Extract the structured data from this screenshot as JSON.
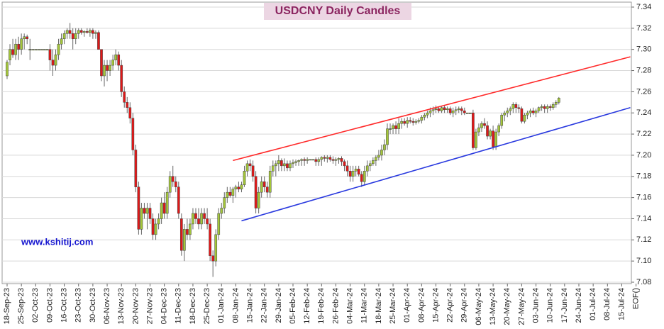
{
  "chart_data": {
    "type": "candlestick",
    "title": "USDCNY Daily Candles",
    "watermark": "www.kshitij.com",
    "up_color": "#a4c639",
    "down_color": "#e01818",
    "ylim": [
      7.08,
      7.34
    ],
    "yticks": [
      7.08,
      {
        "value": 7.1,
        "label": "7.10"
      },
      7.12,
      7.14,
      7.16,
      7.18,
      {
        "value": 7.2,
        "label": "7.20"
      },
      7.22,
      7.24,
      7.26,
      7.28,
      {
        "value": 7.3,
        "label": "7.30"
      },
      7.32,
      7.34
    ],
    "grid": true,
    "categories": [
      "18-Sep-23",
      "25-Sep-23",
      "02-Oct-23",
      "09-Oct-23",
      "16-Oct-23",
      "23-Oct-23",
      "30-Oct-23",
      "06-Nov-23",
      "13-Nov-23",
      "20-Nov-23",
      "27-Nov-23",
      "04-Dec-23",
      "11-Dec-23",
      "18-Dec-23",
      "25-Dec-23",
      "01-Jan-24",
      "08-Jan-24",
      "15-Jan-24",
      "22-Jan-24",
      "29-Jan-24",
      "05-Feb-24",
      "12-Feb-24",
      "19-Feb-24",
      "26-Feb-24",
      "04-Mar-24",
      "11-Mar-24",
      "18-Mar-24",
      "25-Mar-24",
      "01-Apr-24",
      "08-Apr-24",
      "15-Apr-24",
      "22-Apr-24",
      "29-Apr-24",
      "06-May-24",
      "13-May-24",
      "20-May-24",
      "27-May-24",
      "03-Jun-24",
      "10-Jun-24",
      "17-Jun-24",
      "24-Jun-24",
      "01-Jul-24",
      "08-Jul-24",
      "15-Jul-24",
      "EOF()"
    ],
    "trendlines": [
      {
        "color": "#ff2a2a",
        "x": [
          79,
          218
        ],
        "y": [
          7.195,
          7.293
        ]
      },
      {
        "color": "#2a3adf",
        "x": [
          82,
          218
        ],
        "y": [
          7.138,
          7.245
        ]
      }
    ],
    "ohlc": [
      [
        7.275,
        7.29,
        7.272,
        7.288
      ],
      [
        7.29,
        7.305,
        7.285,
        7.3
      ],
      [
        7.3,
        7.31,
        7.292,
        7.295
      ],
      [
        7.295,
        7.31,
        7.29,
        7.305
      ],
      [
        7.305,
        7.312,
        7.29,
        7.3
      ],
      [
        7.3,
        7.315,
        7.295,
        7.31
      ],
      [
        7.31,
        7.315,
        7.3,
        7.312
      ],
      [
        7.312,
        7.314,
        7.305,
        7.31
      ],
      [
        7.3,
        7.31,
        7.29,
        7.3
      ],
      [
        7.3,
        7.3,
        7.3,
        7.3
      ],
      [
        7.3,
        7.3,
        7.3,
        7.3
      ],
      [
        7.3,
        7.3,
        7.3,
        7.3
      ],
      [
        7.3,
        7.3,
        7.3,
        7.3
      ],
      [
        7.3,
        7.3,
        7.3,
        7.3
      ],
      [
        7.3,
        7.3,
        7.3,
        7.3
      ],
      [
        7.3,
        7.305,
        7.28,
        7.29
      ],
      [
        7.29,
        7.3,
        7.275,
        7.285
      ],
      [
        7.285,
        7.3,
        7.28,
        7.295
      ],
      [
        7.295,
        7.31,
        7.29,
        7.305
      ],
      [
        7.305,
        7.315,
        7.3,
        7.31
      ],
      [
        7.31,
        7.318,
        7.305,
        7.315
      ],
      [
        7.315,
        7.32,
        7.31,
        7.318
      ],
      [
        7.318,
        7.325,
        7.31,
        7.315
      ],
      [
        7.315,
        7.32,
        7.3,
        7.31
      ],
      [
        7.31,
        7.32,
        7.305,
        7.315
      ],
      [
        7.315,
        7.32,
        7.31,
        7.318
      ],
      [
        7.318,
        7.32,
        7.314,
        7.316
      ],
      [
        7.316,
        7.318,
        7.312,
        7.317
      ],
      [
        7.317,
        7.32,
        7.315,
        7.316
      ],
      [
        7.316,
        7.32,
        7.312,
        7.318
      ],
      [
        7.318,
        7.32,
        7.31,
        7.315
      ],
      [
        7.315,
        7.318,
        7.31,
        7.316
      ],
      [
        7.316,
        7.318,
        7.3,
        7.3
      ],
      [
        7.3,
        7.3,
        7.27,
        7.275
      ],
      [
        7.275,
        7.29,
        7.265,
        7.285
      ],
      [
        7.285,
        7.29,
        7.27,
        7.28
      ],
      [
        7.28,
        7.29,
        7.275,
        7.285
      ],
      [
        7.285,
        7.295,
        7.28,
        7.29
      ],
      [
        7.29,
        7.3,
        7.285,
        7.295
      ],
      [
        7.295,
        7.298,
        7.28,
        7.285
      ],
      [
        7.285,
        7.29,
        7.255,
        7.26
      ],
      [
        7.26,
        7.265,
        7.245,
        7.25
      ],
      [
        7.25,
        7.255,
        7.24,
        7.245
      ],
      [
        7.245,
        7.25,
        7.23,
        7.235
      ],
      [
        7.235,
        7.24,
        7.2,
        7.205
      ],
      [
        7.205,
        7.21,
        7.165,
        7.17
      ],
      [
        7.17,
        7.175,
        7.125,
        7.13
      ],
      [
        7.13,
        7.155,
        7.125,
        7.15
      ],
      [
        7.15,
        7.155,
        7.14,
        7.145
      ],
      [
        7.145,
        7.155,
        7.13,
        7.15
      ],
      [
        7.15,
        7.155,
        7.135,
        7.14
      ],
      [
        7.14,
        7.145,
        7.12,
        7.125
      ],
      [
        7.125,
        7.14,
        7.12,
        7.135
      ],
      [
        7.135,
        7.145,
        7.13,
        7.14
      ],
      [
        7.14,
        7.16,
        7.135,
        7.155
      ],
      [
        7.155,
        7.165,
        7.14,
        7.145
      ],
      [
        7.145,
        7.17,
        7.14,
        7.165
      ],
      [
        7.165,
        7.185,
        7.16,
        7.18
      ],
      [
        7.18,
        7.19,
        7.17,
        7.175
      ],
      [
        7.175,
        7.18,
        7.165,
        7.17
      ],
      [
        7.17,
        7.175,
        7.14,
        7.145
      ],
      [
        7.14,
        7.145,
        7.105,
        7.11
      ],
      [
        7.11,
        7.135,
        7.1,
        7.13
      ],
      [
        7.13,
        7.14,
        7.12,
        7.125
      ],
      [
        7.125,
        7.14,
        7.12,
        7.135
      ],
      [
        7.135,
        7.15,
        7.13,
        7.145
      ],
      [
        7.145,
        7.15,
        7.135,
        7.14
      ],
      [
        7.14,
        7.15,
        7.13,
        7.135
      ],
      [
        7.135,
        7.15,
        7.13,
        7.145
      ],
      [
        7.145,
        7.15,
        7.135,
        7.14
      ],
      [
        7.14,
        7.15,
        7.13,
        7.135
      ],
      [
        7.135,
        7.14,
        7.1,
        7.105
      ],
      [
        7.105,
        7.11,
        7.085,
        7.1
      ],
      [
        7.1,
        7.13,
        7.095,
        7.125
      ],
      [
        7.125,
        7.15,
        7.12,
        7.145
      ],
      [
        7.145,
        7.155,
        7.14,
        7.15
      ],
      [
        7.15,
        7.165,
        7.145,
        7.16
      ],
      [
        7.16,
        7.17,
        7.155,
        7.165
      ],
      [
        7.165,
        7.17,
        7.16,
        7.162
      ],
      [
        7.162,
        7.17,
        7.155,
        7.168
      ],
      [
        7.168,
        7.172,
        7.16,
        7.17
      ],
      [
        7.17,
        7.175,
        7.165,
        7.168
      ],
      [
        7.168,
        7.175,
        7.165,
        7.172
      ],
      [
        7.172,
        7.19,
        7.17,
        7.185
      ],
      [
        7.185,
        7.195,
        7.18,
        7.192
      ],
      [
        7.192,
        7.196,
        7.185,
        7.19
      ],
      [
        7.19,
        7.195,
        7.175,
        7.18
      ],
      [
        7.18,
        7.185,
        7.145,
        7.15
      ],
      [
        7.15,
        7.17,
        7.145,
        7.165
      ],
      [
        7.165,
        7.18,
        7.16,
        7.175
      ],
      [
        7.175,
        7.18,
        7.165,
        7.17
      ],
      [
        7.17,
        7.175,
        7.16,
        7.165
      ],
      [
        7.165,
        7.19,
        7.16,
        7.185
      ],
      [
        7.185,
        7.195,
        7.18,
        7.19
      ],
      [
        7.19,
        7.195,
        7.18,
        7.192
      ],
      [
        7.192,
        7.2,
        7.185,
        7.195
      ],
      [
        7.195,
        7.197,
        7.185,
        7.19
      ],
      [
        7.19,
        7.197,
        7.185,
        7.192
      ],
      [
        7.192,
        7.195,
        7.185,
        7.188
      ],
      [
        7.188,
        7.195,
        7.185,
        7.192
      ],
      [
        7.192,
        7.196,
        7.188,
        7.193
      ],
      [
        7.193,
        7.196,
        7.19,
        7.194
      ],
      [
        7.194,
        7.196,
        7.19,
        7.195
      ],
      [
        7.195,
        7.197,
        7.19,
        7.196
      ],
      [
        7.196,
        7.198,
        7.19,
        7.195
      ],
      [
        7.195,
        7.198,
        7.192,
        7.196
      ],
      [
        7.196,
        7.196,
        7.196,
        7.196
      ],
      [
        7.196,
        7.196,
        7.196,
        7.196
      ],
      [
        7.196,
        7.198,
        7.19,
        7.194
      ],
      [
        7.194,
        7.198,
        7.19,
        7.196
      ],
      [
        7.196,
        7.199,
        7.19,
        7.198
      ],
      [
        7.198,
        7.2,
        7.194,
        7.197
      ],
      [
        7.197,
        7.2,
        7.193,
        7.198
      ],
      [
        7.198,
        7.2,
        7.194,
        7.196
      ],
      [
        7.196,
        7.199,
        7.192,
        7.195
      ],
      [
        7.195,
        7.198,
        7.19,
        7.196
      ],
      [
        7.196,
        7.198,
        7.192,
        7.197
      ],
      [
        7.197,
        7.199,
        7.19,
        7.194
      ],
      [
        7.194,
        7.196,
        7.185,
        7.19
      ],
      [
        7.19,
        7.195,
        7.18,
        7.185
      ],
      [
        7.185,
        7.19,
        7.175,
        7.18
      ],
      [
        7.18,
        7.19,
        7.175,
        7.185
      ],
      [
        7.185,
        7.19,
        7.18,
        7.187
      ],
      [
        7.187,
        7.19,
        7.18,
        7.182
      ],
      [
        7.182,
        7.185,
        7.17,
        7.175
      ],
      [
        7.175,
        7.19,
        7.172,
        7.185
      ],
      [
        7.185,
        7.195,
        7.18,
        7.19
      ],
      [
        7.19,
        7.195,
        7.185,
        7.192
      ],
      [
        7.192,
        7.198,
        7.19,
        7.195
      ],
      [
        7.195,
        7.2,
        7.19,
        7.198
      ],
      [
        7.198,
        7.205,
        7.195,
        7.2
      ],
      [
        7.2,
        7.21,
        7.195,
        7.205
      ],
      [
        7.205,
        7.215,
        7.2,
        7.21
      ],
      [
        7.21,
        7.23,
        7.205,
        7.225
      ],
      [
        7.225,
        7.23,
        7.22,
        7.225
      ],
      [
        7.225,
        7.23,
        7.22,
        7.228
      ],
      [
        7.228,
        7.232,
        7.22,
        7.225
      ],
      [
        7.225,
        7.235,
        7.22,
        7.23
      ],
      [
        7.23,
        7.235,
        7.225,
        7.232
      ],
      [
        7.232,
        7.235,
        7.228,
        7.23
      ],
      [
        7.23,
        7.236,
        7.226,
        7.233
      ],
      [
        7.233,
        7.236,
        7.23,
        7.232
      ],
      [
        7.232,
        7.235,
        7.228,
        7.231
      ],
      [
        7.231,
        7.234,
        7.229,
        7.232
      ],
      [
        7.232,
        7.235,
        7.23,
        7.233
      ],
      [
        7.233,
        7.238,
        7.23,
        7.236
      ],
      [
        7.236,
        7.24,
        7.233,
        7.238
      ],
      [
        7.238,
        7.242,
        7.235,
        7.24
      ],
      [
        7.24,
        7.245,
        7.236,
        7.242
      ],
      [
        7.242,
        7.246,
        7.238,
        7.243
      ],
      [
        7.243,
        7.247,
        7.24,
        7.244
      ],
      [
        7.244,
        7.246,
        7.24,
        7.242
      ],
      [
        7.242,
        7.246,
        7.24,
        7.245
      ],
      [
        7.245,
        7.247,
        7.24,
        7.243
      ],
      [
        7.243,
        7.246,
        7.24,
        7.244
      ],
      [
        7.244,
        7.246,
        7.238,
        7.24
      ],
      [
        7.24,
        7.245,
        7.236,
        7.242
      ],
      [
        7.242,
        7.246,
        7.238,
        7.243
      ],
      [
        7.243,
        7.246,
        7.24,
        7.244
      ],
      [
        7.244,
        7.246,
        7.238,
        7.242
      ],
      [
        7.242,
        7.245,
        7.238,
        7.24
      ],
      [
        7.24,
        7.24,
        7.24,
        7.24
      ],
      [
        7.24,
        7.24,
        7.24,
        7.24
      ],
      [
        7.24,
        7.243,
        7.205,
        7.207
      ],
      [
        7.207,
        7.225,
        7.205,
        7.222
      ],
      [
        7.222,
        7.23,
        7.218,
        7.226
      ],
      [
        7.226,
        7.232,
        7.222,
        7.23
      ],
      [
        7.23,
        7.235,
        7.225,
        7.228
      ],
      [
        7.228,
        7.232,
        7.215,
        7.218
      ],
      [
        7.218,
        7.225,
        7.215,
        7.223
      ],
      [
        7.223,
        7.228,
        7.205,
        7.208
      ],
      [
        7.208,
        7.225,
        7.205,
        7.222
      ],
      [
        7.222,
        7.23,
        7.218,
        7.228
      ],
      [
        7.228,
        7.24,
        7.225,
        7.238
      ],
      [
        7.238,
        7.242,
        7.232,
        7.24
      ],
      [
        7.24,
        7.245,
        7.236,
        7.242
      ],
      [
        7.242,
        7.246,
        7.238,
        7.244
      ],
      [
        7.244,
        7.25,
        7.24,
        7.248
      ],
      [
        7.248,
        7.25,
        7.24,
        7.245
      ],
      [
        7.245,
        7.248,
        7.24,
        7.244
      ],
      [
        7.244,
        7.246,
        7.23,
        7.232
      ],
      [
        7.232,
        7.24,
        7.23,
        7.238
      ],
      [
        7.238,
        7.242,
        7.234,
        7.24
      ],
      [
        7.24,
        7.244,
        7.236,
        7.242
      ],
      [
        7.242,
        7.245,
        7.238,
        7.24
      ],
      [
        7.24,
        7.244,
        7.236,
        7.242
      ],
      [
        7.242,
        7.246,
        7.24,
        7.245
      ],
      [
        7.245,
        7.248,
        7.242,
        7.246
      ],
      [
        7.246,
        7.248,
        7.24,
        7.244
      ],
      [
        7.244,
        7.248,
        7.24,
        7.246
      ],
      [
        7.246,
        7.248,
        7.242,
        7.245
      ],
      [
        7.245,
        7.25,
        7.243,
        7.248
      ],
      [
        7.248,
        7.252,
        7.245,
        7.25
      ],
      [
        7.25,
        7.255,
        7.248,
        7.254
      ]
    ]
  }
}
